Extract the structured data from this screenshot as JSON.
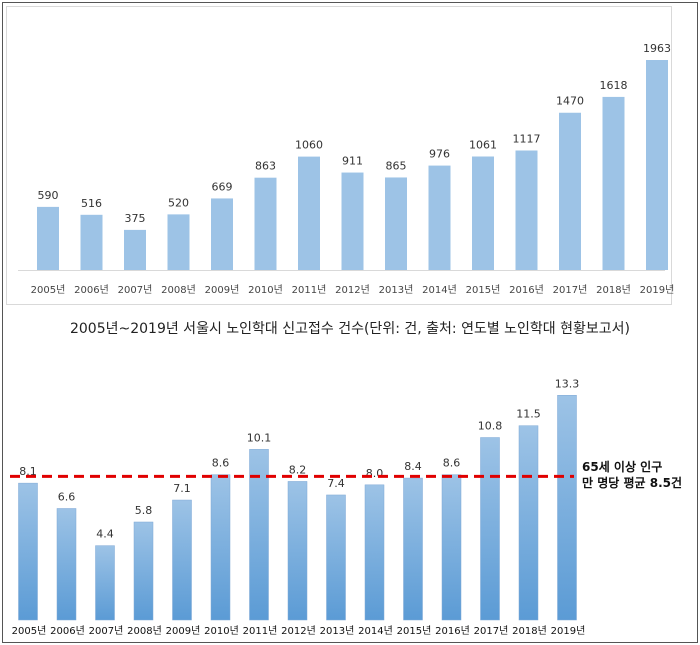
{
  "caption": "2005년~2019년 서울시 노인학대 신고접수 건수(단위: 건, 출처: 연도별 노인학대 현황보고서)",
  "colors": {
    "bar": "#9dc3e6",
    "bar_gradient_top": "#9dc3e6",
    "bar_gradient_bottom": "#5b9bd5",
    "reference_line": "#e00000"
  },
  "reference": {
    "line1": "65세 이상 인구",
    "line2": "만 명당 평균 8.5건"
  },
  "chart_data": [
    {
      "type": "bar",
      "categories": [
        "2005년",
        "2006년",
        "2007년",
        "2008년",
        "2009년",
        "2010년",
        "2011년",
        "2012년",
        "2013년",
        "2014년",
        "2015년",
        "2016년",
        "2017년",
        "2018년",
        "2019년"
      ],
      "values": [
        590,
        516,
        375,
        520,
        669,
        863,
        1060,
        911,
        865,
        976,
        1061,
        1117,
        1470,
        1618,
        1963
      ],
      "ylim": [
        0,
        2150
      ],
      "grid": false,
      "data_labels": true
    },
    {
      "type": "bar",
      "categories": [
        "2005년",
        "2006년",
        "2007년",
        "2008년",
        "2009년",
        "2010년",
        "2011년",
        "2012년",
        "2013년",
        "2014년",
        "2015년",
        "2016년",
        "2017년",
        "2018년",
        "2019년"
      ],
      "values": [
        8.1,
        6.6,
        4.4,
        5.8,
        7.1,
        8.6,
        10.1,
        8.2,
        7.4,
        8.0,
        8.4,
        8.6,
        10.8,
        11.5,
        13.3
      ],
      "value_labels": [
        "8.1",
        "6.6",
        "4.4",
        "5.8",
        "7.1",
        "8.6",
        "10.1",
        "8.2",
        "7.4",
        "8.0",
        "8.4",
        "8.6",
        "10.8",
        "11.5",
        "13.3"
      ],
      "reference_line": 8.5,
      "ylim": [
        0,
        14.5
      ],
      "grid": false,
      "data_labels": true
    }
  ]
}
